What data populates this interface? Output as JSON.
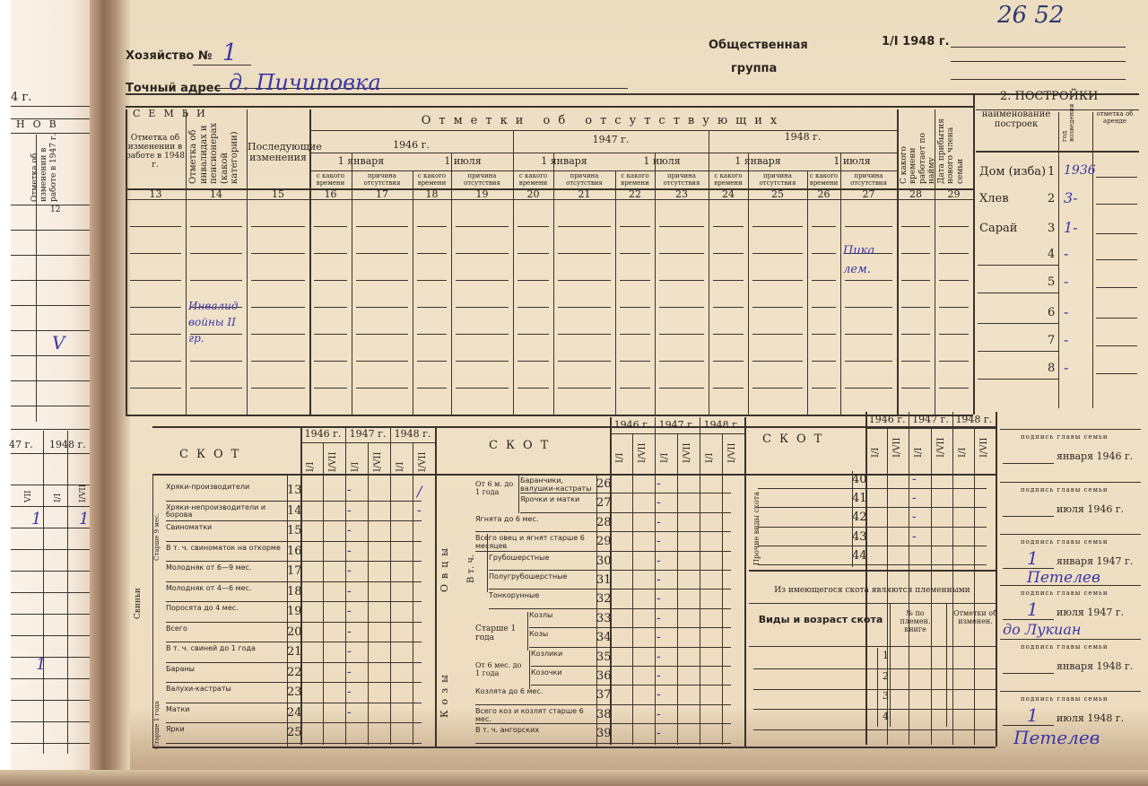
{
  "header": {
    "household_label": "Хозяйство №",
    "household_no": "1",
    "address_label": "Точный адрес",
    "address_value": "д. Пичиповка",
    "social_group_1": "Общественная",
    "social_group_2": "группа",
    "date_label": "1/I 1948 г.",
    "archive_number": "26 52"
  },
  "left_page": {
    "year_label": "4 г.",
    "section": "НОВ",
    "col12_header": "Отметка об изменении в работе в 1947 г.",
    "col12_number": "12",
    "check_mark": "V",
    "year_1947": "47 г.",
    "year_1948": "1948 г.",
    "sub_vii": "VII",
    "sub_i": "I/I",
    "sub_ivii": "I/VII",
    "marks": [
      "1",
      "1",
      "1"
    ]
  },
  "family": {
    "section_title": "СЕМЬИ",
    "col13_header": "Отметка об изменении в работе в 1948 г.",
    "col14_header": "Отметка об инвалидах и пенсионерах (какой категории)",
    "col15_header": "Последующие изменения",
    "absent_title": "Отметки об отсутствующих",
    "years": [
      "1946 г.",
      "1947 г.",
      "1948 г."
    ],
    "dates": [
      "1 января",
      "1 июля",
      "1 января",
      "1 июля",
      "1 января",
      "1 июля"
    ],
    "since_label": "с какого времени",
    "reason_label": "причина отсутствия",
    "col28_header": "С какого времени работает по найму",
    "col29_header": "Дата прибытия нового члена семьи",
    "col_numbers": [
      "13",
      "14",
      "15",
      "16",
      "17",
      "18",
      "19",
      "20",
      "21",
      "22",
      "23",
      "24",
      "25",
      "26",
      "27",
      "28",
      "29"
    ],
    "note_invalid": "Инвалид войны II гр.",
    "note_col27": "Пика лем."
  },
  "buildings": {
    "title": "2. ПОСТРОЙКИ",
    "col_name": "наименование построек",
    "col_year": "год возведения",
    "col_rent": "отметка об аренде",
    "items": [
      {
        "name": "Дом (изба)",
        "num": "1",
        "year": "1936"
      },
      {
        "name": "Хлев",
        "num": "2",
        "year": "3-"
      },
      {
        "name": "Сарай",
        "num": "3",
        "year": "1-"
      },
      {
        "name": "",
        "num": "4",
        "year": "-"
      },
      {
        "name": "",
        "num": "5",
        "year": "-"
      },
      {
        "name": "",
        "num": "6",
        "year": "-"
      },
      {
        "name": "",
        "num": "7",
        "year": "-"
      },
      {
        "name": "",
        "num": "8",
        "year": "-"
      }
    ]
  },
  "livestock": {
    "title": "СКОТ",
    "years": [
      "1946 г.",
      "1947 г.",
      "1948 г."
    ],
    "periods": [
      "I/I",
      "I/VII"
    ],
    "pigs_group": "Свиньи",
    "pigs_sub": "Старше 9 мес.",
    "sheep_sub": "Старше 1 года",
    "sheep_group": "Овцы",
    "goats_group": "Козы",
    "incl_label": "В т. ч.",
    "other_group": "Прочие виды скота",
    "table1": [
      {
        "num": "13",
        "label": "Хряки-производители",
        "mark": "-"
      },
      {
        "num": "14",
        "label": "Хряки-непроизводители и борова",
        "mark": "-"
      },
      {
        "num": "15",
        "label": "Свиноматки",
        "mark": "-"
      },
      {
        "num": "16",
        "label": "В т. ч. свиноматок на откорме",
        "mark": "-"
      },
      {
        "num": "17",
        "label": "Молодняк от 6—9 мес.",
        "mark": "-"
      },
      {
        "num": "18",
        "label": "Молодняк от 4—6 мес.",
        "mark": "-"
      },
      {
        "num": "19",
        "label": "Поросята до 4 мес.",
        "mark": "-"
      },
      {
        "num": "20",
        "label": "Всего",
        "mark": "-"
      },
      {
        "num": "21",
        "label": "В т. ч. свиней до 1 года",
        "mark": "-"
      },
      {
        "num": "22",
        "label": "Бараны",
        "mark": "-"
      },
      {
        "num": "23",
        "label": "Валухи-кастраты",
        "mark": "-"
      },
      {
        "num": "24",
        "label": "Матки",
        "mark": "-"
      },
      {
        "num": "25",
        "label": "Ярки",
        "mark": ""
      }
    ],
    "table1_extra_marks": [
      "/",
      "-"
    ],
    "sheep_young_label": "От 6 м. до 1 года",
    "goat_old_label": "Старше 1 года",
    "goat_young_label": "От 6 мес. до 1 года",
    "table2": [
      {
        "num": "26",
        "label": "Баранчики, валушки-кастраты",
        "mark": "-"
      },
      {
        "num": "27",
        "label": "Ярочки и матки",
        "mark": "-"
      },
      {
        "num": "28",
        "label": "Ягнята до 6 мес.",
        "mark": "-"
      },
      {
        "num": "29",
        "label": "Всего овец и ягнят старше 6 месяцев",
        "mark": "-"
      },
      {
        "num": "30",
        "label": "Грубошерстные",
        "mark": "-"
      },
      {
        "num": "31",
        "label": "Полугрубошерстные",
        "mark": "-"
      },
      {
        "num": "32",
        "label": "Тонкорунные",
        "mark": "-"
      },
      {
        "num": "33",
        "label": "Козлы",
        "mark": "-"
      },
      {
        "num": "34",
        "label": "Козы",
        "mark": "-"
      },
      {
        "num": "35",
        "label": "Козлики",
        "mark": "-"
      },
      {
        "num": "36",
        "label": "Козочки",
        "mark": "-"
      },
      {
        "num": "37",
        "label": "Козлята до 6 мес.",
        "mark": "-"
      },
      {
        "num": "38",
        "label": "Всего коз и козлят старше 6 мес.",
        "mark": "-"
      },
      {
        "num": "39",
        "label": "В т. ч. ангорских",
        "mark": "-"
      }
    ],
    "table3": [
      {
        "num": "40",
        "mark": "-"
      },
      {
        "num": "41",
        "mark": "-"
      },
      {
        "num": "42",
        "mark": "-"
      },
      {
        "num": "43",
        "mark": "-"
      },
      {
        "num": "44",
        "mark": ""
      }
    ]
  },
  "breeding": {
    "title": "Из имеющегося скота являются племенными",
    "col_kind": "Виды и возраст скота",
    "col_book": "№ по племен. книге",
    "col_changes": "Отметки об изменен.",
    "rows": [
      "1",
      "2",
      "3",
      "4"
    ]
  },
  "signatures": {
    "caption": "подпись главы семьи",
    "dates": [
      {
        "day": "",
        "text": "января 1946 г."
      },
      {
        "day": "",
        "text": "июля 1946 г."
      },
      {
        "day": "1",
        "text": "января 1947 г."
      },
      {
        "day": "1",
        "text": "июля 1947 г."
      },
      {
        "day": "",
        "text": "января 1948 г."
      },
      {
        "day": "1",
        "text": "июля 1948 г."
      }
    ],
    "handwritten": [
      "Петелев",
      "до Лукиан",
      "Петелев"
    ]
  }
}
